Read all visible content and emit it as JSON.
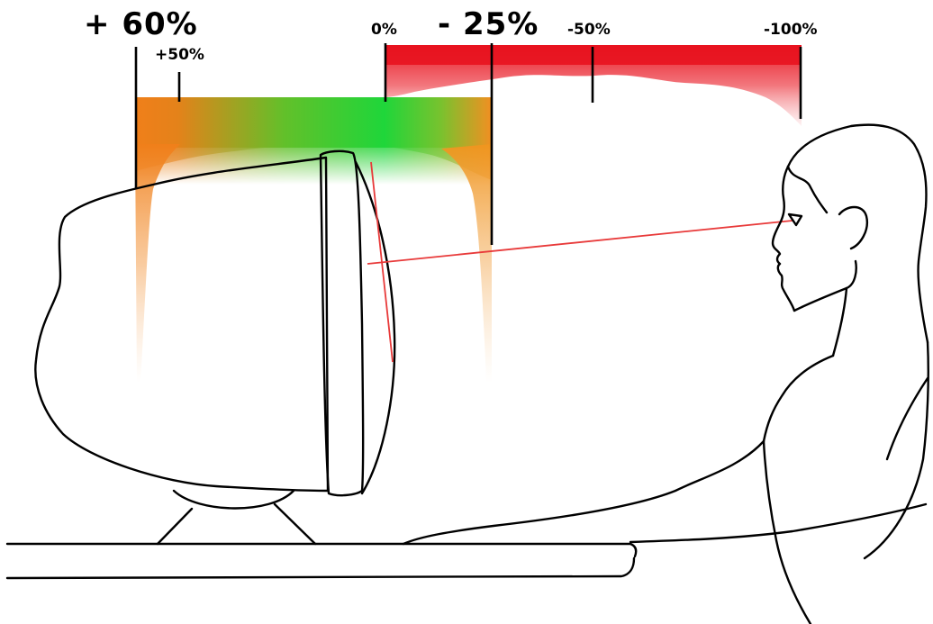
{
  "labels": {
    "plus_60": "+ 60%",
    "plus_50": "+50%",
    "zero": "0%",
    "minus_25": "- 25%",
    "minus_50": "-50%",
    "minus_100": "-100%"
  },
  "colors": {
    "increase_band": "#f07f1a",
    "neutral_band": "#1fd63a",
    "decrease_band": "#e8131f",
    "line_of_sight": "#e83a3a",
    "outline": "#000000"
  }
}
